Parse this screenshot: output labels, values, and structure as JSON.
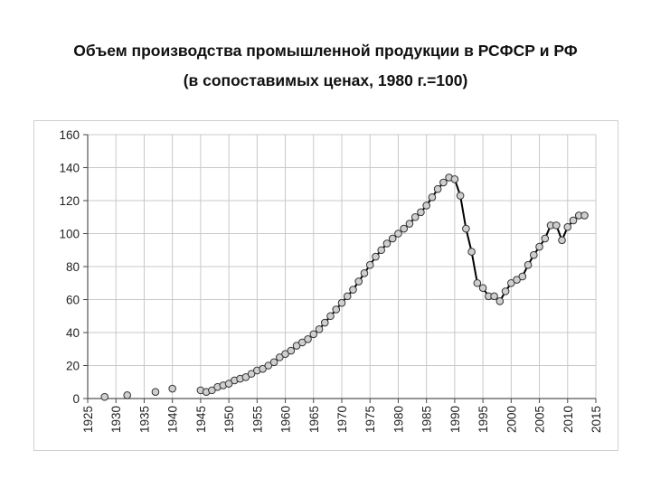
{
  "slide": {
    "title_line1": "Объем производства промышленной продукции в РСФСР и РФ",
    "title_line2": "(в сопоставимых ценах, 1980 г.=100)"
  },
  "chart_data": {
    "type": "line",
    "title": "Объем производства промышленной продукции в РСФСР и РФ (в сопоставимых ценах, 1980 г.=100)",
    "xlabel": "",
    "ylabel": "",
    "xlim": [
      1925,
      2015
    ],
    "ylim": [
      0,
      160
    ],
    "x_ticks": [
      1925,
      1930,
      1935,
      1940,
      1945,
      1950,
      1955,
      1960,
      1965,
      1970,
      1975,
      1980,
      1985,
      1990,
      1995,
      2000,
      2005,
      2010,
      2015
    ],
    "y_ticks": [
      0,
      20,
      40,
      60,
      80,
      100,
      120,
      140,
      160
    ],
    "grid": true,
    "legend": "none",
    "colors": {
      "line": "#000000",
      "marker_fill": "#cfcfcf",
      "marker_stroke": "#333333",
      "grid": "#c8c8c8"
    },
    "isolated_points": [
      {
        "x": 1928,
        "y": 1
      },
      {
        "x": 1932,
        "y": 2
      },
      {
        "x": 1937,
        "y": 4
      },
      {
        "x": 1940,
        "y": 6
      }
    ],
    "series": [
      {
        "points": [
          [
            1945,
            5
          ],
          [
            1946,
            4
          ],
          [
            1947,
            5
          ],
          [
            1948,
            7
          ],
          [
            1949,
            8
          ],
          [
            1950,
            9
          ],
          [
            1951,
            11
          ],
          [
            1952,
            12
          ],
          [
            1953,
            13
          ],
          [
            1954,
            15
          ],
          [
            1955,
            17
          ],
          [
            1956,
            18
          ],
          [
            1957,
            20
          ],
          [
            1958,
            22
          ],
          [
            1959,
            25
          ],
          [
            1960,
            27
          ],
          [
            1961,
            29
          ],
          [
            1962,
            32
          ],
          [
            1963,
            34
          ],
          [
            1964,
            36
          ],
          [
            1965,
            39
          ],
          [
            1966,
            42
          ],
          [
            1967,
            46
          ],
          [
            1968,
            50
          ],
          [
            1969,
            54
          ],
          [
            1970,
            58
          ],
          [
            1971,
            62
          ],
          [
            1972,
            66
          ],
          [
            1973,
            71
          ],
          [
            1974,
            76
          ],
          [
            1975,
            81
          ],
          [
            1976,
            86
          ],
          [
            1977,
            90
          ],
          [
            1978,
            94
          ],
          [
            1979,
            97
          ],
          [
            1980,
            100
          ],
          [
            1981,
            103
          ],
          [
            1982,
            106
          ],
          [
            1983,
            110
          ],
          [
            1984,
            113
          ],
          [
            1985,
            117
          ],
          [
            1986,
            122
          ],
          [
            1987,
            127
          ],
          [
            1988,
            131
          ],
          [
            1989,
            134
          ],
          [
            1990,
            133
          ],
          [
            1991,
            123
          ],
          [
            1992,
            103
          ],
          [
            1993,
            89
          ],
          [
            1994,
            70
          ],
          [
            1995,
            67
          ],
          [
            1996,
            62
          ],
          [
            1997,
            62
          ],
          [
            1998,
            59
          ],
          [
            1999,
            65
          ],
          [
            2000,
            70
          ],
          [
            2001,
            72
          ],
          [
            2002,
            74
          ],
          [
            2003,
            81
          ],
          [
            2004,
            87
          ],
          [
            2005,
            92
          ],
          [
            2006,
            97
          ],
          [
            2007,
            105
          ],
          [
            2008,
            105
          ],
          [
            2009,
            96
          ],
          [
            2010,
            104
          ],
          [
            2011,
            108
          ],
          [
            2012,
            111
          ],
          [
            2013,
            111
          ]
        ]
      }
    ]
  }
}
